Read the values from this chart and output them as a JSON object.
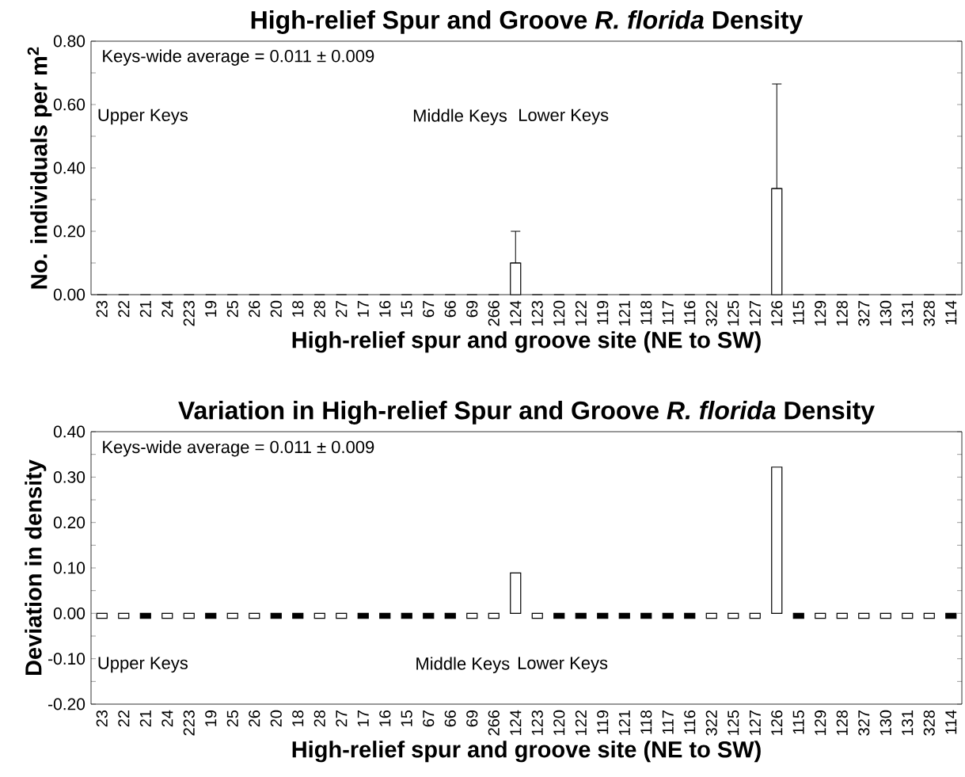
{
  "chart_data": [
    {
      "type": "bar",
      "title": "High-relief Spur and Groove *R. florida* Density",
      "xlabel": "High-relief spur and groove site (NE to SW)",
      "ylabel": "No. individuals per m$^{2}$",
      "categories": [
        "23",
        "22",
        "21",
        "24",
        "223",
        "19",
        "25",
        "26",
        "20",
        "18",
        "28",
        "27",
        "17",
        "16",
        "15",
        "67",
        "66",
        "69",
        "266",
        "124",
        "123",
        "120",
        "122",
        "119",
        "121",
        "118",
        "117",
        "116",
        "322",
        "125",
        "127",
        "126",
        "115",
        "129",
        "128",
        "327",
        "130",
        "131",
        "328",
        "114"
      ],
      "values": [
        0,
        0,
        0,
        0,
        0,
        0,
        0,
        0,
        0,
        0,
        0,
        0,
        0,
        0,
        0,
        0,
        0,
        0,
        0,
        0.1,
        0,
        0,
        0,
        0,
        0,
        0,
        0,
        0,
        0,
        0,
        0,
        0.335,
        0,
        0,
        0,
        0,
        0,
        0,
        0,
        0
      ],
      "errors": [
        null,
        null,
        null,
        null,
        null,
        null,
        null,
        null,
        null,
        null,
        null,
        null,
        null,
        null,
        null,
        null,
        null,
        null,
        null,
        [
          0.1,
          0.2
        ],
        null,
        null,
        null,
        null,
        null,
        null,
        null,
        null,
        null,
        null,
        null,
        [
          0.335,
          0.665
        ],
        null,
        null,
        null,
        null,
        null,
        null,
        null,
        null
      ],
      "color": "#ffffff",
      "ylim": [
        0,
        0.8
      ],
      "yticks": [
        {
          "value": 0,
          "label": "0.00"
        },
        {
          "value": 0.1,
          "label": null
        },
        {
          "value": 0.2,
          "label": "0.20"
        },
        {
          "value": 0.3,
          "label": null
        },
        {
          "value": 0.4,
          "label": "0.40"
        },
        {
          "value": 0.5,
          "label": null
        },
        {
          "value": 0.6,
          "label": "0.60"
        },
        {
          "value": 0.7,
          "label": null
        },
        {
          "value": 0.8,
          "label": "0.80"
        }
      ],
      "annotations": [
        "Keys-wide average = 0.011 ± 0.009",
        "Upper Keys",
        "Middle Keys",
        "Lower Keys"
      ]
    },
    {
      "type": "bar",
      "title": "Variation in High-relief Spur and Groove *R. florida* Density",
      "xlabel": "High-relief spur and groove site (NE to SW)",
      "ylabel": "Deviation in density",
      "categories": [
        "23",
        "22",
        "21",
        "24",
        "223",
        "19",
        "25",
        "26",
        "20",
        "18",
        "28",
        "27",
        "17",
        "16",
        "15",
        "67",
        "66",
        "69",
        "266",
        "124",
        "123",
        "120",
        "122",
        "119",
        "121",
        "118",
        "117",
        "116",
        "322",
        "125",
        "127",
        "126",
        "115",
        "129",
        "128",
        "327",
        "130",
        "131",
        "328",
        "114"
      ],
      "values": [
        -0.011,
        -0.011,
        -0.011,
        -0.011,
        -0.011,
        -0.011,
        -0.011,
        -0.011,
        -0.011,
        -0.011,
        -0.011,
        -0.011,
        -0.011,
        -0.011,
        -0.011,
        -0.011,
        -0.011,
        -0.011,
        -0.011,
        0.089,
        -0.011,
        -0.011,
        -0.011,
        -0.011,
        -0.011,
        -0.011,
        -0.011,
        -0.011,
        -0.011,
        -0.011,
        -0.011,
        0.322,
        -0.011,
        -0.011,
        -0.011,
        -0.011,
        -0.011,
        -0.011,
        -0.011,
        -0.011
      ],
      "colors": [
        "#ffffff",
        "#ffffff",
        "#000000",
        "#ffffff",
        "#ffffff",
        "#000000",
        "#ffffff",
        "#ffffff",
        "#000000",
        "#000000",
        "#ffffff",
        "#ffffff",
        "#000000",
        "#000000",
        "#000000",
        "#000000",
        "#000000",
        "#ffffff",
        "#ffffff",
        "#ffffff",
        "#ffffff",
        "#000000",
        "#000000",
        "#000000",
        "#000000",
        "#000000",
        "#000000",
        "#000000",
        "#ffffff",
        "#ffffff",
        "#ffffff",
        "#ffffff",
        "#000000",
        "#ffffff",
        "#ffffff",
        "#ffffff",
        "#ffffff",
        "#ffffff",
        "#ffffff",
        "#000000"
      ],
      "ylim": [
        -0.2,
        0.4
      ],
      "yticks": [
        {
          "value": -0.2,
          "label": "-0.20"
        },
        {
          "value": -0.15,
          "label": null
        },
        {
          "value": -0.1,
          "label": "-0.10"
        },
        {
          "value": -0.05,
          "label": null
        },
        {
          "value": 0,
          "label": "0.00"
        },
        {
          "value": 0.05,
          "label": null
        },
        {
          "value": 0.1,
          "label": "0.10"
        },
        {
          "value": 0.15,
          "label": null
        },
        {
          "value": 0.2,
          "label": "0.20"
        },
        {
          "value": 0.25,
          "label": null
        },
        {
          "value": 0.3,
          "label": "0.30"
        },
        {
          "value": 0.35,
          "label": null
        },
        {
          "value": 0.4,
          "label": "0.40"
        }
      ],
      "annotations": [
        "Keys-wide average = 0.011 ± 0.009",
        "Upper Keys",
        "Middle Keys",
        "Lower Keys"
      ]
    }
  ]
}
